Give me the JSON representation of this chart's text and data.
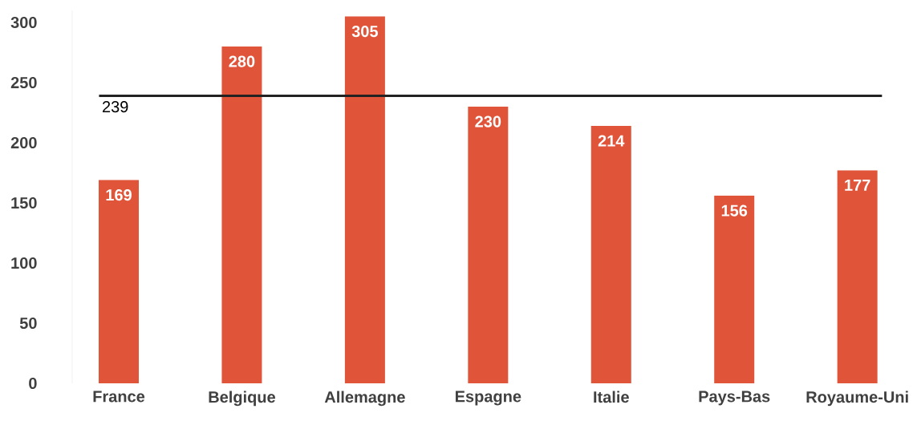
{
  "chart_data": {
    "type": "bar",
    "categories": [
      "France",
      "Belgique",
      "Allemagne",
      "Espagne",
      "Italie",
      "Pays-Bas",
      "Royaume-Uni"
    ],
    "values": [
      169,
      280,
      305,
      230,
      214,
      156,
      177
    ],
    "color": "#e0553a",
    "ylim": [
      0,
      310
    ],
    "yticks": [
      0,
      50,
      100,
      150,
      200,
      250,
      300
    ],
    "data_labels": true,
    "ref_lines": [
      {
        "axis": "y",
        "value": 239,
        "label": "239",
        "color": "#222222"
      }
    ]
  }
}
